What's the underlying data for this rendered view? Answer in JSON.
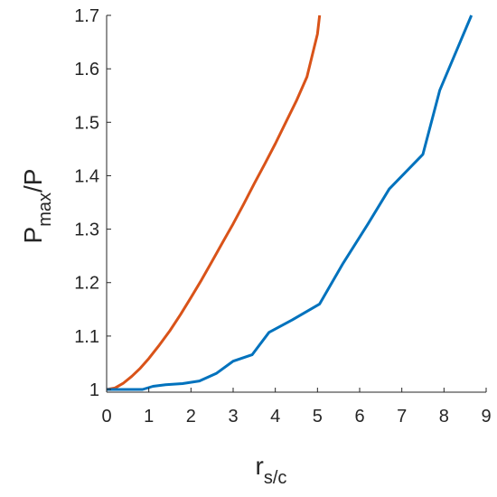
{
  "chart_data": {
    "type": "line",
    "title": "",
    "xlabel": {
      "main": "r",
      "subscript": "s/c"
    },
    "ylabel": {
      "main": "P",
      "subscript": "max",
      "suffix": "/P"
    },
    "xlim": [
      0,
      9
    ],
    "ylim": [
      0.995,
      1.7
    ],
    "xticks": [
      0,
      1,
      2,
      3,
      4,
      5,
      6,
      7,
      8,
      9
    ],
    "yticks": [
      1,
      1.1,
      1.2,
      1.3,
      1.4,
      1.5,
      1.6,
      1.7
    ],
    "ytick_labels": [
      "1",
      "1.1",
      "1.2",
      "1.3",
      "1.4",
      "1.5",
      "1.6",
      "1.7"
    ],
    "grid": false,
    "legend": "none",
    "series": [
      {
        "color": "#D95319",
        "points": [
          [
            0,
            1.0
          ],
          [
            0.2,
            1.003
          ],
          [
            0.4,
            1.012
          ],
          [
            0.6,
            1.025
          ],
          [
            0.8,
            1.04
          ],
          [
            1.0,
            1.058
          ],
          [
            1.25,
            1.083
          ],
          [
            1.5,
            1.11
          ],
          [
            1.75,
            1.14
          ],
          [
            2.0,
            1.172
          ],
          [
            2.25,
            1.205
          ],
          [
            2.5,
            1.24
          ],
          [
            2.75,
            1.275
          ],
          [
            3.0,
            1.31
          ],
          [
            3.25,
            1.347
          ],
          [
            3.5,
            1.385
          ],
          [
            3.75,
            1.422
          ],
          [
            4.0,
            1.46
          ],
          [
            4.25,
            1.5
          ],
          [
            4.5,
            1.54
          ],
          [
            4.75,
            1.585
          ],
          [
            5.0,
            1.665
          ],
          [
            5.05,
            1.7
          ]
        ]
      },
      {
        "color": "#0072BD",
        "points": [
          [
            0,
            1.0
          ],
          [
            0.85,
            1.0
          ],
          [
            1.1,
            1.006
          ],
          [
            1.4,
            1.009
          ],
          [
            1.8,
            1.011
          ],
          [
            2.2,
            1.016
          ],
          [
            2.6,
            1.03
          ],
          [
            3.0,
            1.053
          ],
          [
            3.45,
            1.065
          ],
          [
            3.85,
            1.107
          ],
          [
            4.4,
            1.13
          ],
          [
            5.05,
            1.16
          ],
          [
            5.6,
            1.235
          ],
          [
            6.2,
            1.31
          ],
          [
            6.7,
            1.375
          ],
          [
            7.5,
            1.44
          ],
          [
            7.9,
            1.56
          ],
          [
            8.65,
            1.7
          ]
        ]
      }
    ]
  }
}
